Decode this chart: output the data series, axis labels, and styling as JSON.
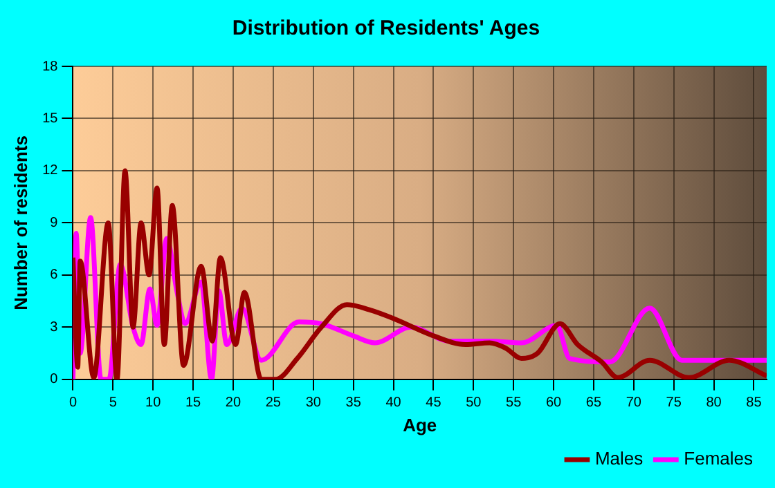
{
  "chart_data": {
    "type": "line",
    "title": "Distribution of Residents' Ages",
    "xlabel": "Age",
    "ylabel": "Number of residents",
    "xlim": [
      0,
      86.6
    ],
    "xticks": [
      0,
      5,
      10,
      15,
      20,
      25,
      30,
      35,
      40,
      45,
      50,
      55,
      60,
      65,
      70,
      75,
      80,
      85
    ],
    "ylim": [
      0,
      18
    ],
    "yticks": [
      0,
      3,
      6,
      9,
      12,
      15,
      18
    ],
    "grid": true,
    "legend": "bottom right",
    "marker": "none",
    "line_style": "solid",
    "series": [
      {
        "name": "Males",
        "color": "#990000",
        "x": [
          0,
          0.6,
          0.9,
          2.6,
          4.4,
          5.5,
          6.5,
          7.5,
          8.5,
          9.5,
          10.5,
          11.4,
          12.4,
          13.8,
          16,
          17.4,
          18.4,
          20.3,
          21.4,
          23.5,
          25.3,
          28,
          31,
          34.2,
          37,
          40,
          45,
          49,
          52,
          54,
          56,
          58,
          60.8,
          63,
          66,
          68,
          72,
          76.9,
          81.9,
          86.6
        ],
        "values": [
          7,
          0.7,
          6.8,
          0.1,
          9,
          0,
          12,
          3,
          9,
          6,
          11,
          2,
          10,
          0.8,
          6.5,
          2.2,
          7,
          2,
          5,
          0,
          0,
          1.2,
          3,
          4.3,
          4,
          3.5,
          2.5,
          2,
          2.1,
          1.8,
          1.2,
          1.5,
          3.2,
          2,
          1,
          0.1,
          1.1,
          0.1,
          1.1,
          0.2
        ]
      },
      {
        "name": "Females",
        "color": "#ff00ff",
        "x": [
          0,
          0.4,
          0.9,
          2.2,
          3.5,
          4.5,
          5.9,
          7.5,
          8.5,
          9.6,
          10.5,
          11.7,
          13,
          14,
          16,
          17.3,
          18.2,
          19.2,
          21.1,
          23.5,
          28.2,
          31,
          35,
          37.7,
          42.2,
          47,
          52,
          56,
          60.4,
          62,
          67,
          72,
          76,
          80,
          86.6
        ],
        "values": [
          0,
          8.4,
          1.5,
          9.3,
          0,
          0,
          6.6,
          3,
          2,
          5.2,
          3.1,
          8.1,
          5,
          3.2,
          5.6,
          0,
          5.1,
          2,
          4.1,
          1.1,
          3.3,
          3.2,
          2.5,
          2.1,
          3,
          2.2,
          2.2,
          2.1,
          3.1,
          1.2,
          1,
          4.1,
          1.1,
          1.1,
          1.1
        ]
      }
    ]
  }
}
